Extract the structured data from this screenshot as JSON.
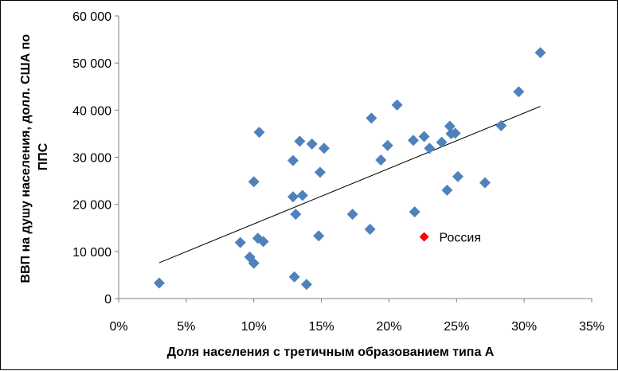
{
  "chart_data": {
    "type": "scatter",
    "xlabel": "Доля населения с третичным образованием типа А",
    "ylabel_lines": [
      "ВВП на душу населения, долл. США по",
      "ППС"
    ],
    "xlim": [
      0,
      35
    ],
    "ylim": [
      0,
      60000
    ],
    "x_ticks": [
      0,
      5,
      10,
      15,
      20,
      25,
      30,
      35
    ],
    "x_tick_labels": [
      "0%",
      "5%",
      "10%",
      "15%",
      "20%",
      "25%",
      "30%",
      "35%"
    ],
    "y_ticks": [
      0,
      10000,
      20000,
      30000,
      40000,
      50000,
      60000
    ],
    "y_tick_labels": [
      "0",
      "10 000",
      "20 000",
      "30 000",
      "40 000",
      "50 000",
      "60 000"
    ],
    "grid": false,
    "colors": {
      "points": "#4F81BD",
      "highlight": "#FF0000",
      "trend": "#000000"
    },
    "trendline": {
      "x": [
        3.0,
        31.2
      ],
      "y": [
        7600,
        40800
      ]
    },
    "points": [
      {
        "x": 3.0,
        "y": 3300
      },
      {
        "x": 9.0,
        "y": 11900
      },
      {
        "x": 9.7,
        "y": 8800
      },
      {
        "x": 10.0,
        "y": 7500
      },
      {
        "x": 10.0,
        "y": 24800
      },
      {
        "x": 10.3,
        "y": 12800
      },
      {
        "x": 10.4,
        "y": 35300
      },
      {
        "x": 10.7,
        "y": 12100
      },
      {
        "x": 12.9,
        "y": 21600
      },
      {
        "x": 12.9,
        "y": 29300
      },
      {
        "x": 13.0,
        "y": 4600
      },
      {
        "x": 13.1,
        "y": 17900
      },
      {
        "x": 13.4,
        "y": 33400
      },
      {
        "x": 13.6,
        "y": 21900
      },
      {
        "x": 13.9,
        "y": 3000
      },
      {
        "x": 14.3,
        "y": 32800
      },
      {
        "x": 14.8,
        "y": 13300
      },
      {
        "x": 14.9,
        "y": 26800
      },
      {
        "x": 15.2,
        "y": 31900
      },
      {
        "x": 17.3,
        "y": 17900
      },
      {
        "x": 18.6,
        "y": 14700
      },
      {
        "x": 18.7,
        "y": 38300
      },
      {
        "x": 19.4,
        "y": 29400
      },
      {
        "x": 19.9,
        "y": 32500
      },
      {
        "x": 20.6,
        "y": 41100
      },
      {
        "x": 21.8,
        "y": 33600
      },
      {
        "x": 21.9,
        "y": 18400
      },
      {
        "x": 22.6,
        "y": 34400
      },
      {
        "x": 23.0,
        "y": 31900
      },
      {
        "x": 23.9,
        "y": 33200
      },
      {
        "x": 24.3,
        "y": 23000
      },
      {
        "x": 24.5,
        "y": 36600
      },
      {
        "x": 24.6,
        "y": 35000
      },
      {
        "x": 24.9,
        "y": 35100
      },
      {
        "x": 25.1,
        "y": 25900
      },
      {
        "x": 27.1,
        "y": 24600
      },
      {
        "x": 28.3,
        "y": 36700
      },
      {
        "x": 29.6,
        "y": 43900
      },
      {
        "x": 31.2,
        "y": 52200
      }
    ],
    "highlight": {
      "x": 22.6,
      "y": 13100,
      "label": "Россия"
    }
  }
}
